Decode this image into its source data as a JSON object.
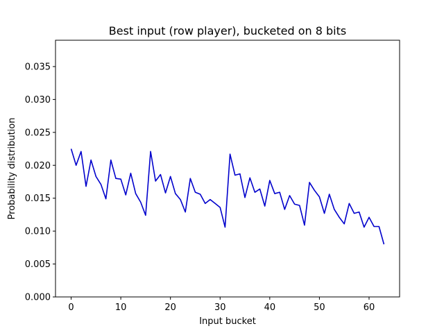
{
  "chart_data": {
    "type": "line",
    "title": "Best input (row player), bucketed on 8 bits",
    "xlabel": "Input bucket",
    "ylabel": "Probability distribution",
    "xlim": [
      -3.15,
      66.15
    ],
    "ylim": [
      0.0,
      0.039
    ],
    "xticks": [
      0,
      10,
      20,
      30,
      40,
      50,
      60
    ],
    "xtick_labels": [
      "0",
      "10",
      "20",
      "30",
      "40",
      "50",
      "60"
    ],
    "yticks": [
      0.0,
      0.005,
      0.01,
      0.015,
      0.02,
      0.025,
      0.03,
      0.035
    ],
    "ytick_labels": [
      "0.000",
      "0.005",
      "0.010",
      "0.015",
      "0.020",
      "0.025",
      "0.030",
      "0.035"
    ],
    "grid": false,
    "series": [
      {
        "color": "#0000cc",
        "x": [
          0,
          1,
          2,
          3,
          4,
          5,
          6,
          7,
          8,
          9,
          10,
          11,
          12,
          13,
          14,
          15,
          16,
          17,
          18,
          19,
          20,
          21,
          22,
          23,
          24,
          25,
          26,
          27,
          28,
          29,
          30,
          31,
          32,
          33,
          34,
          35,
          36,
          37,
          38,
          39,
          40,
          41,
          42,
          43,
          44,
          45,
          46,
          47,
          48,
          49,
          50,
          51,
          52,
          53,
          54,
          55,
          56,
          57,
          58,
          59,
          60,
          61,
          62,
          63
        ],
        "y": [
          0.0225,
          0.02,
          0.0221,
          0.0168,
          0.0208,
          0.0183,
          0.0171,
          0.0149,
          0.0208,
          0.018,
          0.0179,
          0.0155,
          0.0188,
          0.0157,
          0.0144,
          0.0124,
          0.0221,
          0.0176,
          0.0186,
          0.0158,
          0.0183,
          0.0157,
          0.0148,
          0.0129,
          0.018,
          0.0159,
          0.0156,
          0.0142,
          0.0148,
          0.0142,
          0.0136,
          0.0106,
          0.0217,
          0.0185,
          0.0187,
          0.0151,
          0.0181,
          0.0159,
          0.0164,
          0.0138,
          0.0177,
          0.0157,
          0.0159,
          0.0133,
          0.0154,
          0.0141,
          0.0139,
          0.0109,
          0.0174,
          0.0162,
          0.0152,
          0.0127,
          0.0156,
          0.0133,
          0.0121,
          0.0111,
          0.0142,
          0.0127,
          0.0129,
          0.0106,
          0.0121,
          0.0107,
          0.0107,
          0.008
        ]
      }
    ]
  }
}
